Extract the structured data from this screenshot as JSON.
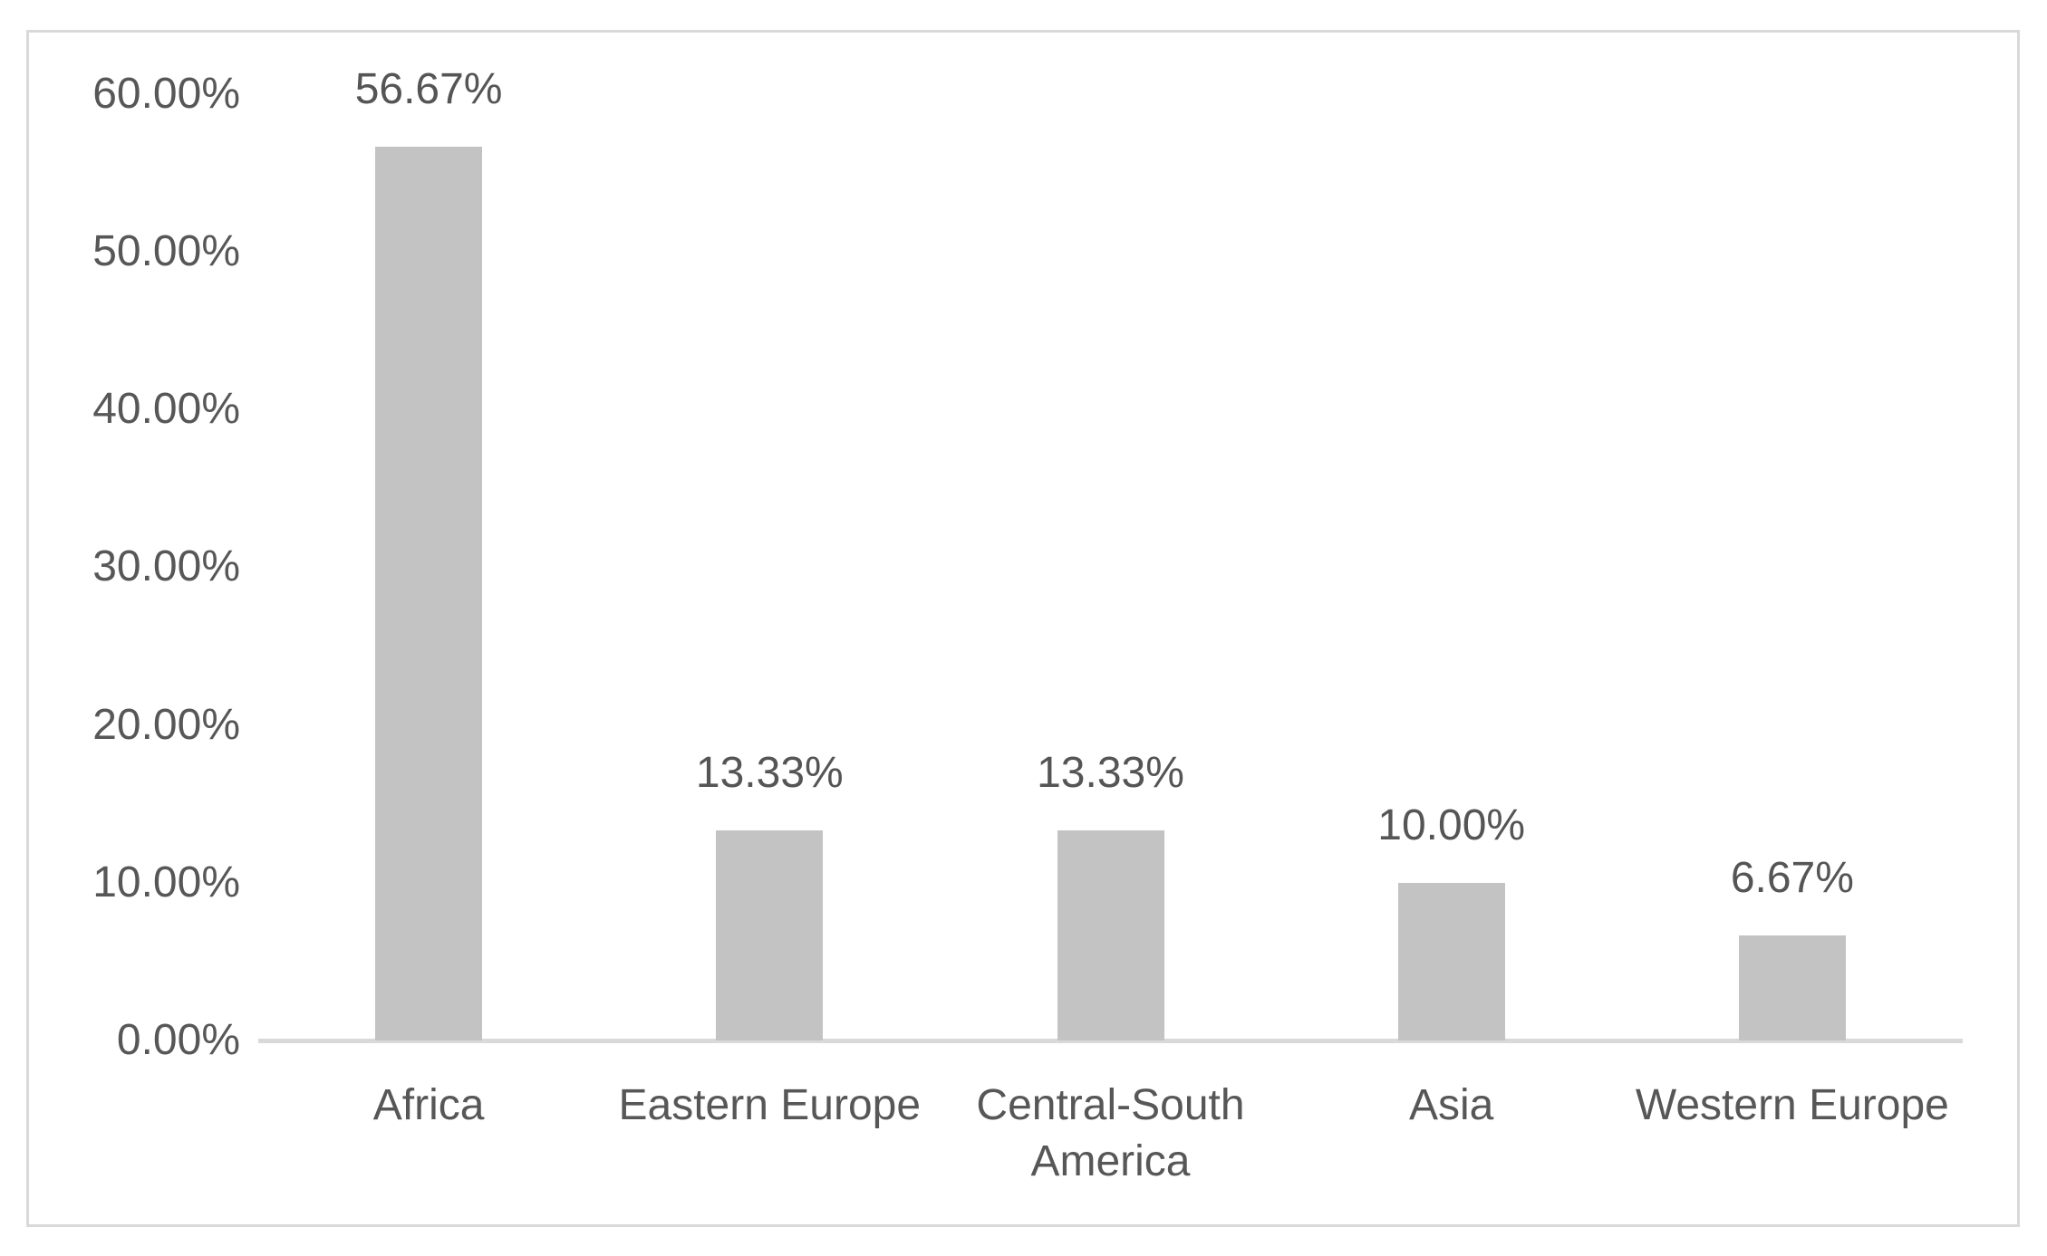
{
  "chart_data": {
    "type": "bar",
    "categories": [
      "Africa",
      "Eastern Europe",
      "Central-South America",
      "Asia",
      "Western Europe"
    ],
    "values": [
      56.67,
      13.33,
      13.33,
      10.0,
      6.67
    ],
    "data_labels": [
      "56.67%",
      "13.33%",
      "13.33%",
      "10.00%",
      "6.67%"
    ],
    "ytick_labels": [
      "0.00%",
      "10.00%",
      "20.00%",
      "30.00%",
      "40.00%",
      "50.00%",
      "60.00%"
    ],
    "ylim": [
      0,
      60
    ],
    "ytick_step": 10,
    "title": "",
    "xlabel": "",
    "ylabel": "",
    "grid": false,
    "legend": "none",
    "bar_color": "#c3c3c3",
    "axis_line_color": "#d9d9d9",
    "frame_border_color": "#d9d9d9",
    "text_color": "#575757",
    "background_color": "#ffffff"
  }
}
